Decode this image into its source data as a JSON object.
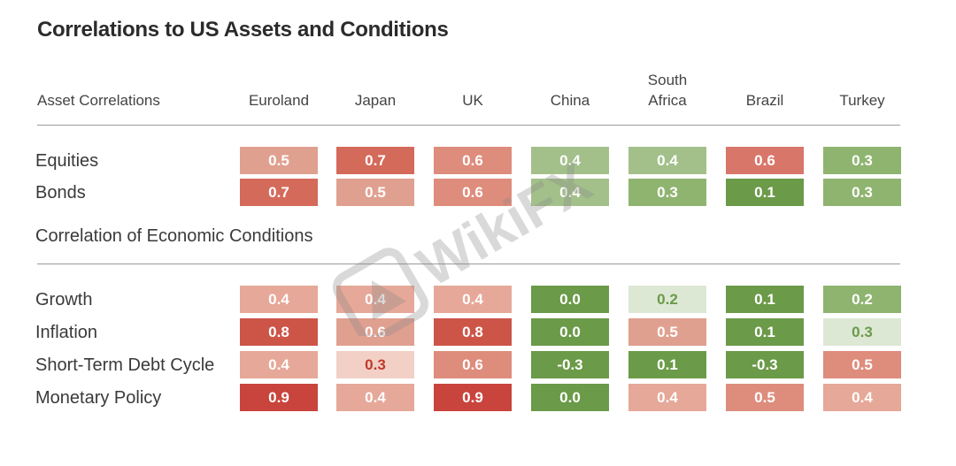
{
  "chart_data": {
    "type": "heatmap",
    "title": "Correlations to US Assets and Conditions",
    "columns_label": "Asset Correlations",
    "columns": [
      {
        "l1": "",
        "l2": "Euroland"
      },
      {
        "l1": "",
        "l2": "Japan"
      },
      {
        "l1": "",
        "l2": "UK"
      },
      {
        "l1": "",
        "l2": "China"
      },
      {
        "l1": "South",
        "l2": "Africa"
      },
      {
        "l1": "",
        "l2": "Brazil"
      },
      {
        "l1": "",
        "l2": "Turkey"
      }
    ],
    "sections": [
      {
        "label": "",
        "rows": [
          {
            "label": "Equities",
            "values": [
              "0.5",
              "0.7",
              "0.6",
              "0.4",
              "0.4",
              "0.6",
              "0.3"
            ]
          },
          {
            "label": "Bonds",
            "values": [
              "0.7",
              "0.5",
              "0.6",
              "0.4",
              "0.3",
              "0.1",
              "0.3"
            ]
          }
        ]
      },
      {
        "label": "Correlation of Economic Conditions",
        "rows": [
          {
            "label": "Growth",
            "values": [
              "0.4",
              "0.4",
              "0.4",
              "0.0",
              "0.2",
              "0.1",
              "0.2"
            ]
          },
          {
            "label": "Inflation",
            "values": [
              "0.8",
              "0.6",
              "0.8",
              "0.0",
              "0.5",
              "0.1",
              "0.3"
            ]
          },
          {
            "label": "Short-Term Debt Cycle",
            "values": [
              "0.4",
              "0.3",
              "0.6",
              "-0.3",
              "0.1",
              "-0.3",
              "0.5"
            ]
          },
          {
            "label": "Monetary Policy",
            "values": [
              "0.9",
              "0.4",
              "0.9",
              "0.0",
              "0.4",
              "0.5",
              "0.4"
            ]
          }
        ]
      }
    ],
    "colors": [
      [
        "#e0a090",
        "#d46a5a",
        "#de8c7c",
        "#a3c08a",
        "#a3c08a",
        "#d8766a",
        "#8fb470"
      ],
      [
        "#d46a5a",
        "#e0a090",
        "#de8c7c",
        "#a3c08a",
        "#8fb470",
        "#6b9a48",
        "#8fb470"
      ],
      [
        "#e6a898",
        "#e6a898",
        "#e6a898",
        "#6b9a48",
        "#dde8d4",
        "#6b9a48",
        "#8fb470"
      ],
      [
        "#cc5548",
        "#e0a090",
        "#cc5548",
        "#6b9a48",
        "#e0a090",
        "#6b9a48",
        "#dde8d4"
      ],
      [
        "#e6a898",
        "#f2d0c6",
        "#de8c7c",
        "#6b9a48",
        "#6b9a48",
        "#6b9a48",
        "#de8c7c"
      ],
      [
        "#c8443c",
        "#e6a898",
        "#c8443c",
        "#6b9a48",
        "#e6a898",
        "#de8c7c",
        "#e6a898"
      ]
    ]
  },
  "watermark": {
    "text": "WikiFX"
  }
}
